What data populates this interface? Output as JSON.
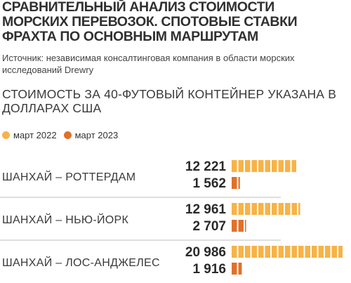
{
  "title": "СРАВНИТЕЛЬНЫЙ АНАЛИЗ СТОИМОСТИ МОРСКИХ ПЕРЕВОЗОК. СПОТОВЫЕ СТАВКИ ФРАХТА ПО ОСНОВНЫМ МАРШРУТАМ",
  "source": "Источник: независимая консалтинговая компания в области морских исследований Drewry",
  "colors": {
    "march_2022": "#f7b347",
    "march_2023": "#e0712a",
    "divider": "#bdbdbd",
    "text": "#2a2a2a"
  },
  "chart_data": {
    "type": "bar",
    "subtitle": "СТОИМОСТЬ ЗА 40-ФУТОВЫЙ КОНТЕЙНЕР УКАЗАНА В ДОЛЛАРАХ США",
    "categories": [
      "ШАНХАЙ – РОТТЕРДАМ",
      "ШАНХАЙ – НЬЮ-ЙОРК",
      "ШАНХАЙ – ЛОС-АНДЖЕЛЕС"
    ],
    "series": [
      {
        "name": "март 2022",
        "values": [
          12221,
          12961,
          20986
        ],
        "labels": [
          "12 221",
          "12 961",
          "20 986"
        ]
      },
      {
        "name": "март 2023",
        "values": [
          1562,
          2707,
          1916
        ],
        "labels": [
          "1 562",
          "2 707",
          "1 916"
        ]
      }
    ],
    "orientation": "horizontal",
    "legend": "top-left"
  }
}
